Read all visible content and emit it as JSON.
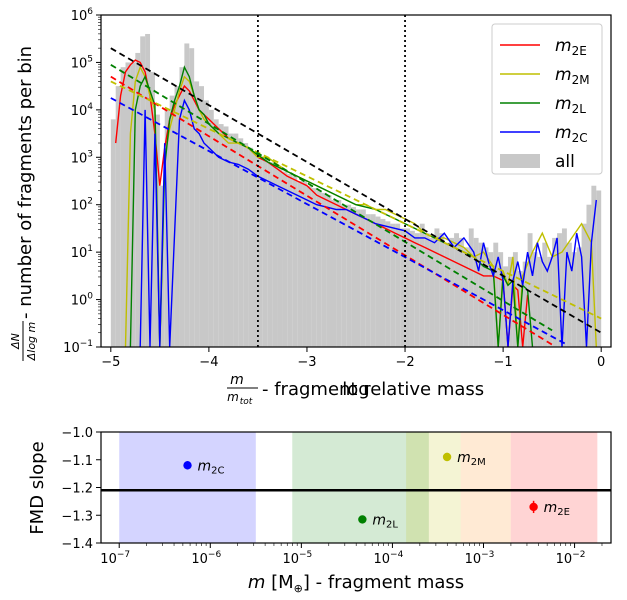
{
  "chart_data": [
    {
      "type": "line",
      "xlabel_prefix": "log",
      "xlabel_frac_num": "m",
      "xlabel_frac_den": "m",
      "xlabel_frac_den_sub": "tot",
      "xlabel_suffix": " - fragment relative mass",
      "ylabel_frac_num": "ΔN",
      "ylabel_frac_den": "Δlog m",
      "ylabel_suffix": " - number of fragments per bin",
      "xlim": [
        -5.1,
        0.1
      ],
      "ylim_log10": [
        -1,
        6
      ],
      "yscale": "log",
      "x_ticks": [
        -5,
        -4,
        -3,
        -2,
        -1,
        0
      ],
      "x_tick_labels": [
        "−5",
        "−4",
        "−3",
        "−2",
        "−1",
        "0"
      ],
      "y_ticks_exp": [
        -1,
        0,
        1,
        2,
        3,
        4,
        5,
        6
      ],
      "y_tick_labels": [
        "10",
        "10",
        "10",
        "10",
        "10",
        "10",
        "10",
        "10"
      ],
      "y_tick_exps": [
        "−1",
        "0",
        "1",
        "2",
        "3",
        "4",
        "5",
        "6"
      ],
      "vlines": [
        -3.5,
        -2.0
      ],
      "legend": {
        "placement": "top-right",
        "entries": [
          {
            "base": "m",
            "sub": "2E",
            "color": "#ff0000"
          },
          {
            "base": "m",
            "sub": "2M",
            "color": "#bfbf00"
          },
          {
            "base": "m",
            "sub": "2L",
            "color": "#008000"
          },
          {
            "base": "m",
            "sub": "2C",
            "color": "#0000ff"
          },
          {
            "base": "all",
            "sub": "",
            "color": "#c8c8c8"
          }
        ]
      },
      "histogram_all": {
        "bin_width": 0.05,
        "bin_left": [
          -5.0,
          -4.95,
          -4.9,
          -4.85,
          -4.8,
          -4.75,
          -4.7,
          -4.65,
          -4.6,
          -4.55,
          -4.5,
          -4.45,
          -4.4,
          -4.35,
          -4.3,
          -4.25,
          -4.2,
          -4.15,
          -4.1,
          -4.05,
          -4.0,
          -3.95,
          -3.9,
          -3.85,
          -3.8,
          -3.75,
          -3.7,
          -3.65,
          -3.6,
          -3.55,
          -3.5,
          -3.45,
          -3.4,
          -3.35,
          -3.3,
          -3.25,
          -3.2,
          -3.15,
          -3.1,
          -3.05,
          -3.0,
          -2.95,
          -2.9,
          -2.85,
          -2.8,
          -2.75,
          -2.7,
          -2.65,
          -2.6,
          -2.55,
          -2.5,
          -2.45,
          -2.4,
          -2.35,
          -2.3,
          -2.25,
          -2.2,
          -2.15,
          -2.1,
          -2.05,
          -2.0,
          -1.95,
          -1.9,
          -1.85,
          -1.8,
          -1.75,
          -1.7,
          -1.65,
          -1.6,
          -1.55,
          -1.5,
          -1.45,
          -1.4,
          -1.35,
          -1.3,
          -1.25,
          -1.2,
          -1.15,
          -1.1,
          -1.05,
          -1.0,
          -0.95,
          -0.9,
          -0.85,
          -0.8,
          -0.75,
          -0.7,
          -0.65,
          -0.6,
          -0.55,
          -0.5,
          -0.45,
          -0.4,
          -0.35,
          -0.3,
          -0.25,
          -0.2,
          -0.15,
          -0.1,
          -0.05
        ],
        "log10_counts": [
          3.8,
          4.5,
          4.9,
          5.0,
          5.0,
          5.2,
          5.55,
          5.6,
          4.8,
          3.9,
          2.4,
          4.0,
          4.3,
          4.5,
          4.9,
          5.4,
          5.3,
          4.6,
          4.5,
          4.2,
          4.0,
          3.8,
          3.7,
          3.65,
          3.5,
          3.5,
          3.4,
          3.3,
          3.2,
          3.1,
          3.0,
          3.0,
          2.9,
          2.85,
          2.8,
          2.7,
          2.65,
          2.6,
          2.5,
          2.5,
          2.4,
          2.35,
          2.3,
          2.25,
          2.2,
          2.1,
          2.1,
          2.0,
          2.0,
          1.95,
          1.9,
          1.9,
          1.8,
          1.8,
          1.75,
          1.7,
          1.65,
          1.6,
          1.6,
          1.5,
          1.5,
          1.45,
          1.4,
          1.6,
          1.4,
          1.3,
          1.5,
          1.4,
          1.2,
          1.3,
          1.4,
          1.3,
          1.1,
          1.5,
          1.3,
          1.2,
          1.1,
          1.0,
          1.2,
          1.0,
          0.7,
          0.9,
          1.0,
          0.6,
          0.8,
          1.4,
          1.0,
          0.9,
          1.2,
          0.9,
          1.3,
          1.4,
          1.5,
          1.2,
          1.0,
          1.1,
          1.6,
          2.0,
          2.4,
          2.3
        ]
      },
      "series": [
        {
          "name": "m2E",
          "color": "#ff0000",
          "x": [
            -4.95,
            -4.9,
            -4.85,
            -4.8,
            -4.75,
            -4.7,
            -4.65,
            -4.6,
            -4.55,
            -4.5,
            -4.45,
            -4.4,
            -4.35,
            -4.3,
            -4.25,
            -4.2,
            -4.15,
            -4.1,
            -4.05,
            -4.0,
            -3.9,
            -3.8,
            -3.7,
            -3.6,
            -3.5,
            -3.4,
            -3.3,
            -3.2,
            -3.1,
            -3.0,
            -2.9,
            -2.8,
            -2.7,
            -2.6,
            -2.5,
            -2.4,
            -2.3,
            -2.2,
            -2.1,
            -2.0,
            -1.9,
            -1.8,
            -1.7,
            -1.6,
            -1.5,
            -1.4,
            -1.3,
            -1.2,
            -1.1,
            -1.0,
            -0.95,
            -0.9,
            -0.85,
            -0.8,
            -0.75
          ],
          "log10y": [
            3.3,
            4.3,
            4.8,
            4.95,
            5.05,
            5.0,
            4.8,
            4.3,
            3.5,
            2.4,
            3.2,
            3.8,
            4.1,
            4.3,
            4.5,
            4.4,
            4.2,
            4.0,
            3.9,
            3.8,
            3.6,
            3.4,
            3.3,
            3.2,
            3.0,
            2.9,
            2.75,
            2.6,
            2.5,
            2.4,
            2.2,
            2.1,
            2.0,
            1.9,
            1.8,
            1.7,
            1.6,
            1.5,
            1.4,
            1.3,
            1.2,
            1.1,
            1.0,
            0.9,
            0.8,
            0.7,
            0.6,
            0.5,
            0.5,
            0.4,
            -1,
            0.3,
            0.2,
            -1,
            0.1
          ]
        },
        {
          "name": "m2M",
          "color": "#bfbf00",
          "x": [
            -4.85,
            -4.8,
            -4.75,
            -4.7,
            -4.65,
            -4.6,
            -4.55,
            -4.5,
            -4.45,
            -4.4,
            -4.35,
            -4.3,
            -4.25,
            -4.2,
            -4.15,
            -4.1,
            -4.05,
            -4.0,
            -3.9,
            -3.8,
            -3.7,
            -3.6,
            -3.5,
            -3.4,
            -3.3,
            -3.2,
            -3.1,
            -3.0,
            -2.9,
            -2.8,
            -2.7,
            -2.6,
            -2.5,
            -2.4,
            -2.3,
            -2.2,
            -2.1,
            -2.0,
            -1.9,
            -1.8,
            -1.7,
            -1.6,
            -1.5,
            -1.4,
            -1.3,
            -1.2,
            -1.1,
            -1.05,
            -1.0,
            -0.95,
            -0.9,
            -0.85,
            -0.8,
            -0.7,
            -0.6,
            -0.5,
            -0.4,
            -0.3,
            -0.2,
            -0.1,
            -0.05
          ],
          "log10y": [
            -1,
            3.5,
            4.6,
            4.9,
            4.7,
            4.3,
            4.0,
            -1,
            3.0,
            3.6,
            4.0,
            4.4,
            4.7,
            4.6,
            4.3,
            4.0,
            3.8,
            3.7,
            3.5,
            3.3,
            3.3,
            3.2,
            3.0,
            3.0,
            2.85,
            2.7,
            2.6,
            2.5,
            2.4,
            2.3,
            2.2,
            2.1,
            2.0,
            2.0,
            1.9,
            1.9,
            1.8,
            1.7,
            1.6,
            1.4,
            1.3,
            1.3,
            1.2,
            1.1,
            0.9,
            1.0,
            0.7,
            -1,
            0.6,
            0.3,
            0.9,
            -1,
            0.5,
            1.0,
            1.4,
            0.9,
            1.0,
            1.3,
            1.6,
            1.2,
            -1
          ]
        },
        {
          "name": "m2L",
          "color": "#008000",
          "x": [
            -4.8,
            -4.75,
            -4.7,
            -4.65,
            -4.6,
            -4.55,
            -4.5,
            -4.45,
            -4.4,
            -4.35,
            -4.3,
            -4.25,
            -4.2,
            -4.15,
            -4.1,
            -4.05,
            -4.0,
            -3.95,
            -3.9,
            -3.8,
            -3.7,
            -3.6,
            -3.5,
            -3.4,
            -3.3,
            -3.2,
            -3.1,
            -3.0,
            -2.9,
            -2.8,
            -2.7,
            -2.6,
            -2.5,
            -2.4,
            -2.3,
            -2.2,
            -2.1,
            -2.0,
            -1.9,
            -1.8,
            -1.7,
            -1.6,
            -1.5,
            -1.4,
            -1.3,
            -1.2,
            -1.1,
            -1.05,
            -1.0,
            -0.95,
            -0.9,
            -0.85,
            -0.8,
            -0.75,
            -0.7
          ],
          "log10y": [
            -1,
            4.0,
            4.5,
            4.7,
            4.4,
            4.1,
            -1,
            2.8,
            3.8,
            4.2,
            4.5,
            4.9,
            4.7,
            4.3,
            4.0,
            3.9,
            3.7,
            3.6,
            3.5,
            3.4,
            3.3,
            3.2,
            3.05,
            2.9,
            2.8,
            2.7,
            2.6,
            2.5,
            2.4,
            2.3,
            2.2,
            2.1,
            2.0,
            1.95,
            1.9,
            1.8,
            1.7,
            1.6,
            1.5,
            1.4,
            1.3,
            1.2,
            1.1,
            1.0,
            0.9,
            0.7,
            0.6,
            -1,
            0.5,
            0.3,
            0.4,
            -1,
            0.3,
            0.2,
            -1
          ]
        },
        {
          "name": "m2C",
          "color": "#0000ff",
          "x": [
            -4.7,
            -4.65,
            -4.6,
            -4.55,
            -4.5,
            -4.45,
            -4.4,
            -4.3,
            -4.25,
            -4.2,
            -4.15,
            -4.1,
            -4.05,
            -4.0,
            -3.9,
            -3.8,
            -3.7,
            -3.6,
            -3.5,
            -3.4,
            -3.3,
            -3.2,
            -3.1,
            -3.0,
            -2.9,
            -2.8,
            -2.7,
            -2.6,
            -2.5,
            -2.4,
            -2.3,
            -2.2,
            -2.1,
            -2.0,
            -1.9,
            -1.8,
            -1.7,
            -1.6,
            -1.5,
            -1.4,
            -1.3,
            -1.25,
            -1.2,
            -1.15,
            -1.1,
            -1.05,
            -1.0,
            -0.95,
            -0.9,
            -0.85,
            -0.8,
            -0.75,
            -0.7,
            -0.65,
            -0.6,
            -0.55,
            -0.5,
            -0.45,
            -0.4,
            -0.35,
            -0.3,
            -0.25,
            -0.2,
            -0.15,
            -0.1,
            -0.05
          ],
          "log10y": [
            -1,
            4.0,
            -1,
            3.5,
            -1,
            3.3,
            -1,
            3.8,
            4.2,
            4.0,
            3.6,
            3.5,
            3.3,
            3.2,
            3.0,
            2.9,
            2.85,
            2.75,
            2.6,
            2.5,
            2.4,
            2.3,
            2.2,
            2.1,
            2.0,
            1.95,
            1.9,
            1.9,
            1.8,
            1.7,
            1.6,
            1.55,
            1.5,
            1.45,
            1.3,
            1.3,
            1.2,
            1.4,
            1.1,
            1.3,
            1.0,
            0.6,
            1.2,
            0.8,
            0.5,
            0.9,
            0.4,
            -1,
            0.4,
            0.8,
            0.3,
            1.0,
            0.5,
            1.2,
            0.8,
            0.6,
            0.9,
            1.3,
            -1,
            1.0,
            0.6,
            1.4,
            0.9,
            -1,
            1.2,
            2.1
          ]
        }
      ],
      "fit_lines": [
        {
          "name": "all",
          "color": "#000000",
          "x": [
            -5.0,
            0.0
          ],
          "log10y": [
            5.3,
            -0.7
          ]
        },
        {
          "name": "m2E",
          "color": "#ff0000",
          "x": [
            -5.0,
            -0.5
          ],
          "log10y": [
            4.7,
            -0.95
          ]
        },
        {
          "name": "m2M",
          "color": "#bfbf00",
          "x": [
            -5.0,
            0.0
          ],
          "log10y": [
            4.6,
            -0.4
          ]
        },
        {
          "name": "m2L",
          "color": "#008000",
          "x": [
            -5.0,
            -0.5
          ],
          "log10y": [
            4.95,
            -0.65
          ]
        },
        {
          "name": "m2C",
          "color": "#0000ff",
          "x": [
            -5.0,
            -0.35
          ],
          "log10y": [
            4.25,
            -0.95
          ]
        }
      ]
    },
    {
      "type": "scatter",
      "xscale": "log",
      "xlabel_base": "m",
      "xlabel_bracket": " [M",
      "xlabel_symbol": "⊕",
      "xlabel_suffix": "] - fragment mass",
      "ylabel": "FMD slope",
      "xlim_log10": [
        -7.2,
        -1.6
      ],
      "ylim": [
        -1.4,
        -1.0
      ],
      "x_ticks_exp": [
        -7,
        -6,
        -5,
        -4,
        -3,
        -2
      ],
      "x_tick_labels": [
        "10",
        "10",
        "10",
        "10",
        "10",
        "10"
      ],
      "x_tick_exps": [
        "−7",
        "−6",
        "−5",
        "−4",
        "−3",
        "−2"
      ],
      "y_ticks": [
        -1.0,
        -1.1,
        -1.2,
        -1.3,
        -1.4
      ],
      "y_tick_labels": [
        "−1.0",
        "−1.1",
        "−1.2",
        "−1.3",
        "−1.4"
      ],
      "hline": -1.21,
      "bands": [
        {
          "color": "#0000ff",
          "x_log10": [
            -7.0,
            -5.5
          ]
        },
        {
          "color": "#008000",
          "x_log10": [
            -5.1,
            -3.6
          ]
        },
        {
          "color": "#bfbf00",
          "x_log10": [
            -3.85,
            -3.25
          ]
        },
        {
          "color": "#ff8000",
          "x_log10": [
            -3.25,
            -2.7
          ]
        },
        {
          "color": "#ff0000",
          "x_log10": [
            -2.7,
            -1.75
          ]
        }
      ],
      "points": [
        {
          "label": "m",
          "sub": "2C",
          "color": "#0000ff",
          "x_log10": -6.25,
          "y": -1.12,
          "yerr": 0.015
        },
        {
          "label": "m",
          "sub": "2L",
          "color": "#008000",
          "x_log10": -4.33,
          "y": -1.315,
          "yerr": 0.006
        },
        {
          "label": "m",
          "sub": "2M",
          "color": "#bfbf00",
          "x_log10": -3.4,
          "y": -1.09,
          "yerr": 0.015
        },
        {
          "label": "m",
          "sub": "2E",
          "color": "#ff0000",
          "x_log10": -2.45,
          "y": -1.27,
          "yerr": 0.022
        }
      ]
    }
  ]
}
